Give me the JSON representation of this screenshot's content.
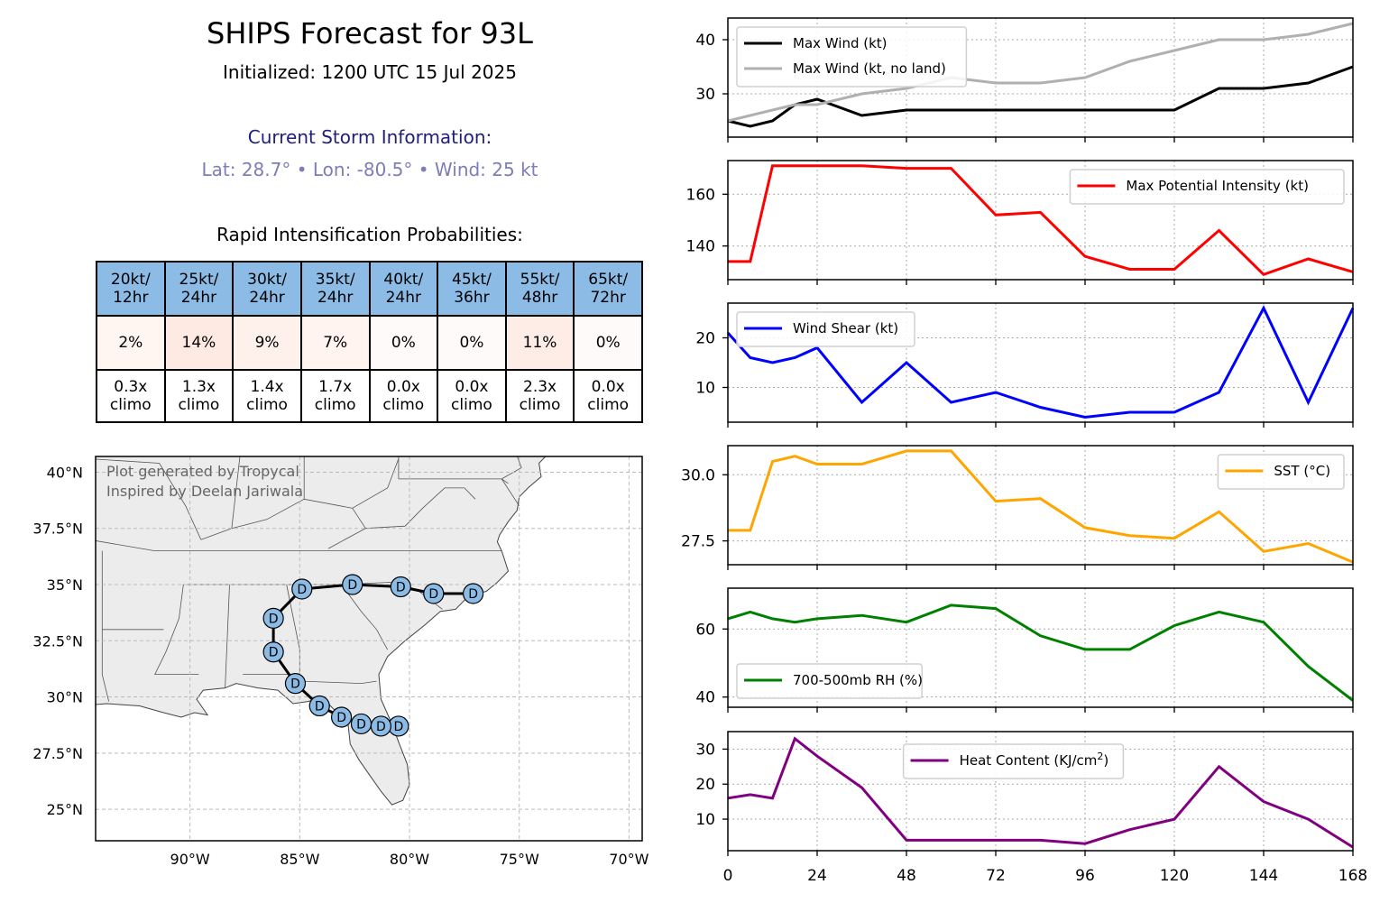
{
  "header": {
    "title": "SHIPS Forecast for 93L",
    "initialized": "Initialized: 1200 UTC 15 Jul 2025",
    "storm_header": "Current Storm Information:",
    "storm_info": "Lat: 28.7° • Lon: -80.5° • Wind: 25 kt",
    "ri_header": "Rapid Intensification Probabilities:"
  },
  "ri_table": {
    "thresholds": [
      [
        "20kt/",
        "12hr"
      ],
      [
        "25kt/",
        "24hr"
      ],
      [
        "30kt/",
        "24hr"
      ],
      [
        "35kt/",
        "24hr"
      ],
      [
        "40kt/",
        "24hr"
      ],
      [
        "45kt/",
        "36hr"
      ],
      [
        "55kt/",
        "48hr"
      ],
      [
        "65kt/",
        "72hr"
      ]
    ],
    "probabilities": [
      "2%",
      "14%",
      "9%",
      "7%",
      "0%",
      "0%",
      "11%",
      "0%"
    ],
    "probability_colors": [
      "#fff6f2",
      "#feeae2",
      "#fef1eb",
      "#fff4ef",
      "#fffafa",
      "#fffafa",
      "#feede6",
      "#fffafa"
    ],
    "climo": [
      [
        "0.3x",
        "climo"
      ],
      [
        "1.3x",
        "climo"
      ],
      [
        "1.4x",
        "climo"
      ],
      [
        "1.7x",
        "climo"
      ],
      [
        "0.0x",
        "climo"
      ],
      [
        "0.0x",
        "climo"
      ],
      [
        "2.3x",
        "climo"
      ],
      [
        "0.0x",
        "climo"
      ]
    ]
  },
  "map": {
    "credit_line1": "Plot generated by Tropycal",
    "credit_line2": "Inspired by Deelan Jariwala",
    "lat_labels": [
      "40°N",
      "37.5°N",
      "35°N",
      "32.5°N",
      "30°N",
      "27.5°N",
      "25°N"
    ],
    "lat_values": [
      40,
      37.5,
      35,
      32.5,
      30,
      27.5,
      25
    ],
    "lon_labels": [
      "90°W",
      "85°W",
      "80°W",
      "75°W",
      "70°W"
    ],
    "lon_values": [
      -90,
      -85,
      -80,
      -75,
      -70
    ],
    "extent": {
      "lon": [
        -94.3,
        -69.4
      ],
      "lat": [
        23.6,
        40.7
      ]
    },
    "track": [
      {
        "lat": 28.7,
        "lon": -80.5,
        "cat": "D"
      },
      {
        "lat": 28.7,
        "lon": -81.3,
        "cat": "D"
      },
      {
        "lat": 28.8,
        "lon": -82.2,
        "cat": "D"
      },
      {
        "lat": 29.1,
        "lon": -83.1,
        "cat": "D"
      },
      {
        "lat": 29.6,
        "lon": -84.1,
        "cat": "D"
      },
      {
        "lat": 30.6,
        "lon": -85.2,
        "cat": "D"
      },
      {
        "lat": 32.0,
        "lon": -86.2,
        "cat": "D"
      },
      {
        "lat": 33.5,
        "lon": -86.2,
        "cat": "D"
      },
      {
        "lat": 34.8,
        "lon": -84.9,
        "cat": "D"
      },
      {
        "lat": 35.0,
        "lon": -82.6,
        "cat": "D"
      },
      {
        "lat": 34.9,
        "lon": -80.4,
        "cat": "D"
      },
      {
        "lat": 34.6,
        "lon": -78.9,
        "cat": "D"
      },
      {
        "lat": 34.6,
        "lon": -77.1,
        "cat": "D"
      }
    ],
    "colors": {
      "land": "#ececec",
      "marker": "#8cbce6",
      "track": "#000000"
    }
  },
  "chart_data": [
    {
      "type": "line",
      "x": [
        0,
        6,
        12,
        18,
        24,
        36,
        48,
        60,
        72,
        84,
        96,
        108,
        120,
        132,
        144,
        156,
        168
      ],
      "ylim": [
        22,
        44
      ],
      "yticks": [
        30,
        40
      ],
      "ytick_labels": [
        "30",
        "40"
      ],
      "legend_position": "upper-left",
      "series": [
        {
          "name": "Max Wind (kt)",
          "color": "#000000",
          "values": [
            25,
            24,
            25,
            28,
            29,
            26,
            27,
            27,
            27,
            27,
            27,
            27,
            27,
            31,
            31,
            32,
            35
          ]
        },
        {
          "name": "Max Wind (kt, no land)",
          "color": "#b0b0b0",
          "values": [
            25,
            26,
            27,
            28,
            28,
            30,
            31,
            33,
            32,
            32,
            33,
            36,
            38,
            40,
            40,
            41,
            43
          ]
        }
      ]
    },
    {
      "type": "line",
      "x": [
        0,
        6,
        12,
        24,
        36,
        48,
        60,
        72,
        84,
        96,
        108,
        120,
        132,
        144,
        156,
        168
      ],
      "ylim": [
        127,
        173
      ],
      "yticks": [
        140,
        160
      ],
      "ytick_labels": [
        "140",
        "160"
      ],
      "legend_position": "upper-right",
      "series": [
        {
          "name": "Max Potential Intensity (kt)",
          "color": "#ff0000",
          "values": [
            134,
            134,
            171,
            171,
            171,
            170,
            170,
            152,
            153,
            136,
            131,
            131,
            146,
            129,
            135,
            130
          ]
        }
      ]
    },
    {
      "type": "line",
      "x": [
        0,
        6,
        12,
        18,
        24,
        36,
        48,
        60,
        72,
        84,
        96,
        108,
        120,
        132,
        144,
        156,
        168
      ],
      "ylim": [
        3,
        27
      ],
      "yticks": [
        10,
        20
      ],
      "ytick_labels": [
        "10",
        "20"
      ],
      "legend_position": "upper-left",
      "series": [
        {
          "name": "Wind Shear (kt)",
          "color": "#0000ff",
          "values": [
            21,
            16,
            15,
            16,
            18,
            7,
            15,
            7,
            9,
            6,
            4,
            5,
            5,
            9,
            26,
            7,
            26
          ]
        }
      ]
    },
    {
      "type": "line",
      "x": [
        0,
        6,
        12,
        18,
        24,
        36,
        48,
        60,
        72,
        84,
        96,
        108,
        120,
        132,
        144,
        156,
        168
      ],
      "ylim": [
        26.6,
        31.1
      ],
      "yticks": [
        27.5,
        30.0
      ],
      "ytick_labels": [
        "27.5",
        "30.0"
      ],
      "legend_position": "upper-right",
      "series": [
        {
          "name": "SST (°C)",
          "color": "#ffa500",
          "values": [
            27.9,
            27.9,
            30.5,
            30.7,
            30.4,
            30.4,
            30.9,
            30.9,
            29.0,
            29.1,
            28.0,
            27.7,
            27.6,
            28.6,
            27.1,
            27.4,
            26.7
          ]
        }
      ]
    },
    {
      "type": "line",
      "x": [
        0,
        6,
        12,
        18,
        24,
        36,
        48,
        60,
        72,
        84,
        96,
        108,
        120,
        132,
        144,
        156,
        168
      ],
      "ylim": [
        37,
        72
      ],
      "yticks": [
        40,
        60
      ],
      "ytick_labels": [
        "40",
        "60"
      ],
      "legend_position": "lower-left",
      "series": [
        {
          "name": "700-500mb RH (%)",
          "color": "#008000",
          "values": [
            63,
            65,
            63,
            62,
            63,
            64,
            62,
            67,
            66,
            58,
            54,
            54,
            61,
            65,
            62,
            49,
            39
          ]
        }
      ]
    },
    {
      "type": "line",
      "x": [
        0,
        6,
        12,
        18,
        24,
        36,
        48,
        60,
        72,
        84,
        96,
        108,
        120,
        132,
        144,
        156,
        168
      ],
      "ylim": [
        1,
        35
      ],
      "yticks": [
        10,
        20,
        30
      ],
      "ytick_labels": [
        "10",
        "20",
        "30"
      ],
      "xticks": [
        0,
        24,
        48,
        72,
        96,
        120,
        144,
        168
      ],
      "xtick_labels": [
        "0",
        "24",
        "48",
        "72",
        "96",
        "120",
        "144",
        "168"
      ],
      "legend_position": "top-center",
      "series": [
        {
          "name": "Heat Content (KJ/cm",
          "name_superscript": "2",
          "name_suffix": ")",
          "color": "#800080",
          "values": [
            16,
            17,
            16,
            33,
            28,
            19,
            4,
            4,
            4,
            4,
            3,
            7,
            10,
            25,
            15,
            10,
            2
          ]
        }
      ]
    }
  ]
}
